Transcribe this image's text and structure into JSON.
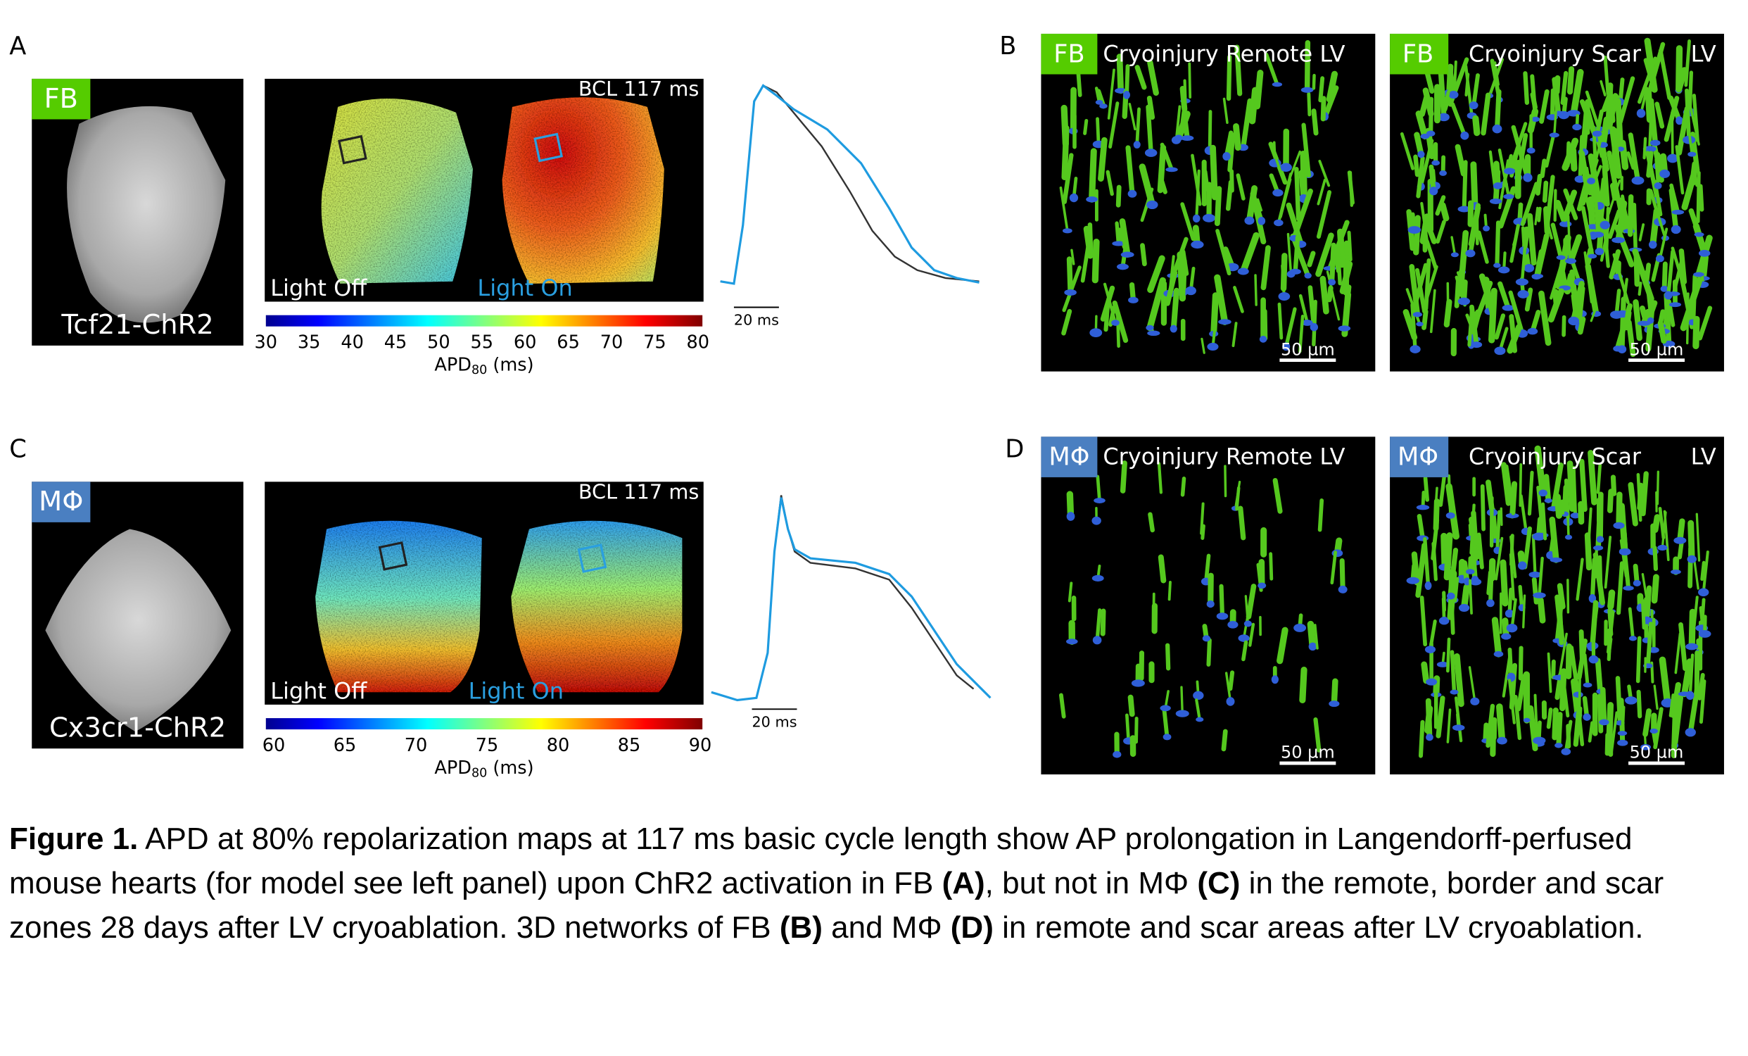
{
  "panel_a": {
    "label": "A",
    "badge": "FB",
    "heart_label": "Tcf21-ChR2",
    "bcl": "BCL 117 ms",
    "light_off": "Light Off",
    "light_on": "Light On",
    "colorbar_ticks": [
      30,
      35,
      40,
      45,
      50,
      55,
      60,
      65,
      70,
      75,
      80
    ],
    "colorbar_label": {
      "name": "APD",
      "subscript": "80",
      "unit": "(ms)"
    },
    "trace_scale": "20 ms"
  },
  "panel_b": {
    "label": "B",
    "images": [
      {
        "badge": "FB",
        "title": "Cryoinjury Remote LV",
        "scale": "50 µm"
      },
      {
        "badge": "FB",
        "title": "Cryoinjury Scar",
        "region": "LV",
        "scale": "50 µm"
      }
    ]
  },
  "panel_c": {
    "label": "C",
    "badge": "MΦ",
    "heart_label": "Cx3cr1-ChR2",
    "bcl": "BCL 117 ms",
    "light_off": "Light Off",
    "light_on": "Light On",
    "colorbar_ticks": [
      60,
      65,
      70,
      75,
      80,
      85,
      90
    ],
    "colorbar_label": {
      "name": "APD",
      "subscript": "80",
      "unit": "(ms)"
    },
    "trace_scale": "20 ms"
  },
  "panel_d": {
    "label": "D",
    "images": [
      {
        "badge": "MΦ",
        "title": "Cryoinjury Remote LV",
        "scale": "50 µm"
      },
      {
        "badge": "MΦ",
        "title": "Cryoinjury Scar",
        "region": "LV",
        "scale": "50 µm"
      }
    ]
  },
  "caption": [
    {
      "text": "Figure 1.",
      "bold": true
    },
    {
      "text": " APD at 80% repolarization maps at 117 ms basic cycle length show AP prolongation in Langendorff-perfused mouse hearts (for model see left panel) upon ChR2 activation in FB ",
      "bold": false
    },
    {
      "text": "(A)",
      "bold": true
    },
    {
      "text": ", but not in MΦ ",
      "bold": false
    },
    {
      "text": "(C)",
      "bold": true
    },
    {
      "text": " in the remote, border and scar zones 28 days after LV cryoablation. 3D networks of FB ",
      "bold": false
    },
    {
      "text": "(B)",
      "bold": true
    },
    {
      "text": " and MΦ ",
      "bold": false
    },
    {
      "text": "(D)",
      "bold": true
    },
    {
      "text": " in remote and scar areas after LV cryoablation.",
      "bold": false
    }
  ]
}
